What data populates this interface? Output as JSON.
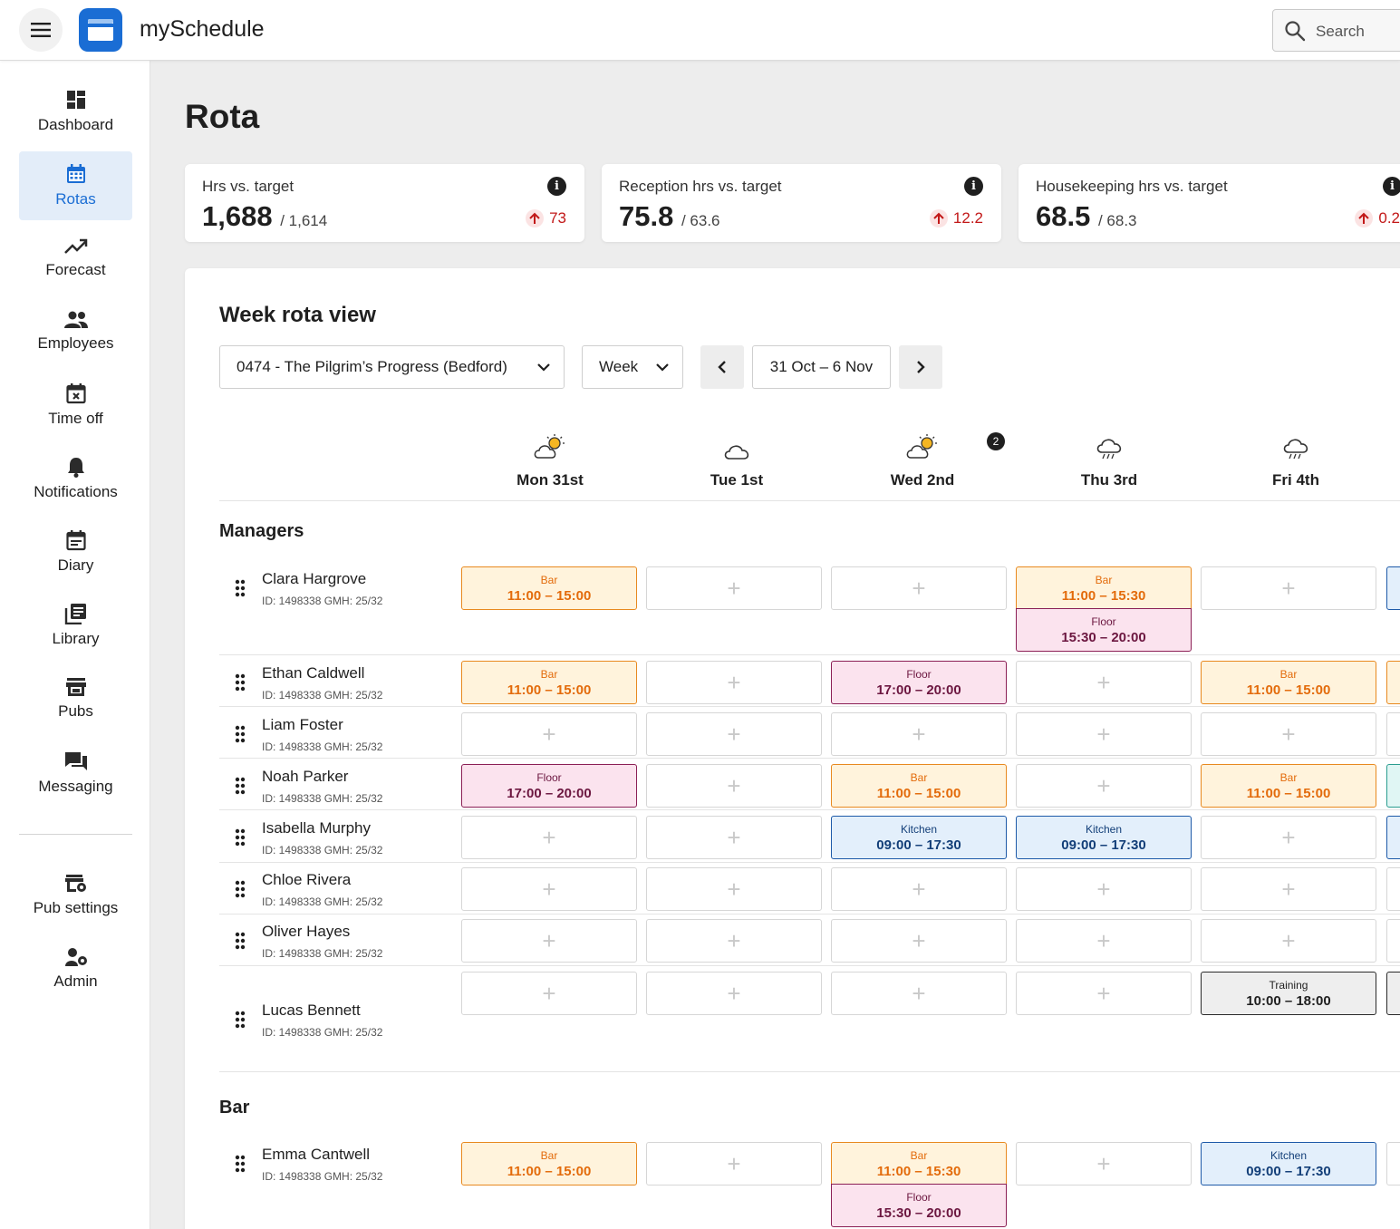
{
  "app": {
    "title": "mySchedule",
    "search_placeholder": "Search"
  },
  "sidebar": {
    "items": [
      {
        "label": "Dashboard",
        "icon": "dashboard-icon"
      },
      {
        "label": "Rotas",
        "icon": "calendar-icon",
        "active": true
      },
      {
        "label": "Forecast",
        "icon": "trending-up-icon"
      },
      {
        "label": "Employees",
        "icon": "people-icon"
      },
      {
        "label": "Time off",
        "icon": "calendar-x-icon"
      },
      {
        "label": "Notifications",
        "icon": "bell-icon"
      },
      {
        "label": "Diary",
        "icon": "diary-icon"
      },
      {
        "label": "Library",
        "icon": "library-icon"
      },
      {
        "label": "Pubs",
        "icon": "store-icon"
      },
      {
        "label": "Messaging",
        "icon": "chat-icon"
      }
    ],
    "bottom_items": [
      {
        "label": "Pub settings",
        "icon": "settings-icon"
      },
      {
        "label": "Admin",
        "icon": "admin-icon"
      }
    ]
  },
  "page": {
    "title": "Rota"
  },
  "kpis": [
    {
      "title": "Hrs vs. target",
      "value": "1,688",
      "target": "/ 1,614",
      "delta": "73"
    },
    {
      "title": "Reception hrs vs. target",
      "value": "75.8",
      "target": "/ 63.6",
      "delta": "12.2"
    },
    {
      "title": "Housekeeping hrs vs. target",
      "value": "68.5",
      "target": "/ 68.3",
      "delta": "0.2"
    }
  ],
  "week_view": {
    "title": "Week rota view",
    "pub_select": "0474 - The Pilgrim’s Progress (Bedford)",
    "period_select": "Week",
    "date_range": "31 Oct – 6 Nov",
    "notification_count": "2",
    "days": [
      {
        "label": "Mon 31st",
        "weather": "partly-sunny-icon"
      },
      {
        "label": "Tue 1st",
        "weather": "cloud-icon"
      },
      {
        "label": "Wed 2nd",
        "weather": "partly-sunny-icon"
      },
      {
        "label": "Thu 3rd",
        "weather": "rain-cloud-icon"
      },
      {
        "label": "Fri 4th",
        "weather": "rain-cloud-icon"
      }
    ]
  },
  "sections": [
    {
      "title": "Managers",
      "employees": [
        {
          "name": "Clara Hargrove",
          "meta": "ID: 1498338  GMH: 25/32"
        },
        {
          "name": "Ethan Caldwell",
          "meta": "ID: 1498338  GMH: 25/32"
        },
        {
          "name": "Liam Foster",
          "meta": "ID: 1498338  GMH: 25/32"
        },
        {
          "name": "Noah Parker",
          "meta": "ID: 1498338  GMH: 25/32"
        },
        {
          "name": "Isabella Murphy",
          "meta": "ID: 1498338  GMH: 25/32"
        },
        {
          "name": "Chloe Rivera",
          "meta": "ID: 1498338  GMH: 25/32"
        },
        {
          "name": "Oliver Hayes",
          "meta": "ID: 1498338  GMH: 25/32"
        },
        {
          "name": "Lucas Bennett",
          "meta": "ID: 1498338  GMH: 25/32"
        }
      ]
    },
    {
      "title": "Bar",
      "employees": [
        {
          "name": "Emma Cantwell",
          "meta": "ID: 1498338  GMH: 25/32"
        }
      ]
    }
  ],
  "shifts": {
    "bar_1100_1500": {
      "type": "Bar",
      "time": "11:00 – 15:00"
    },
    "bar_1100_1530": {
      "type": "Bar",
      "time": "11:00 – 15:30"
    },
    "floor_1530_2000": {
      "type": "Floor",
      "time": "15:30 – 20:00"
    },
    "floor_1700_2000": {
      "type": "Floor",
      "time": "17:00 – 20:00"
    },
    "kitchen_0900_1730": {
      "type": "Kitchen",
      "time": "09:00 – 17:30"
    },
    "training_1000_1800": {
      "type": "Training",
      "time": "10:00 – 18:00"
    }
  },
  "add_shift_symbol": "+"
}
